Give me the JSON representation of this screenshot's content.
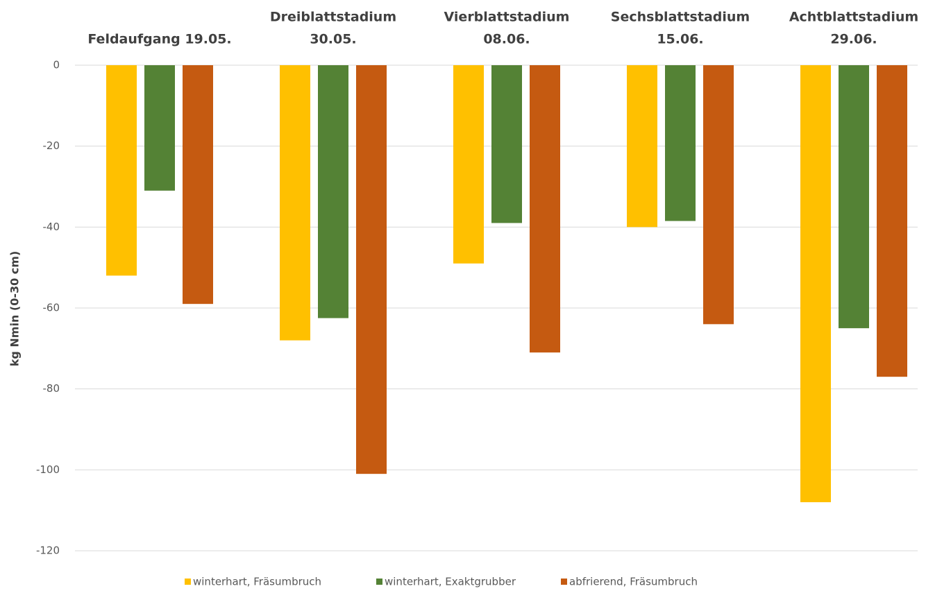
{
  "chart_data": {
    "type": "bar",
    "y_label": "kg Nmin (0-30 cm)",
    "categories": [
      [
        "Feldaufgang  19.05."
      ],
      [
        "Dreiblattstadium",
        "30.05."
      ],
      [
        "Vierblattstadium",
        "08.06."
      ],
      [
        "Sechsblattstadium",
        "15.06."
      ],
      [
        "Achtblattstadium",
        "29.06."
      ]
    ],
    "series": [
      {
        "name": "winterhart, Fräsumbruch",
        "color": "#ffc000",
        "values": [
          -52,
          -68,
          -49,
          -40,
          -108
        ]
      },
      {
        "name": "winterhart, Exaktgrubber",
        "color": "#548235",
        "values": [
          -31,
          -62.5,
          -39,
          -38.5,
          -65
        ]
      },
      {
        "name": "abfrierend, Fräsumbruch",
        "color": "#c55a11",
        "values": [
          -59,
          -101,
          -71,
          -64,
          -77
        ]
      }
    ],
    "ylim": [
      -120,
      0
    ],
    "yticks": [
      0,
      -20,
      -40,
      -60,
      -80,
      -100,
      -120
    ],
    "grid": true,
    "legend": "bottom"
  }
}
